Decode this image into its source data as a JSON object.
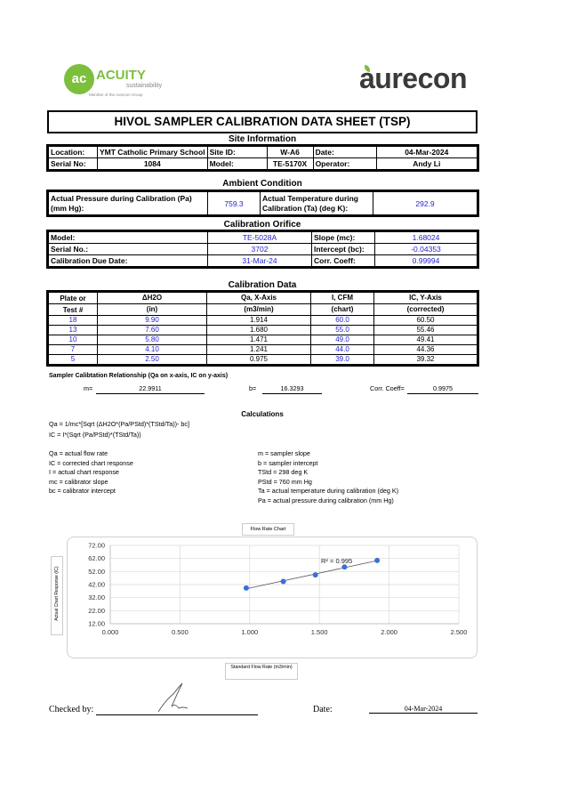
{
  "logos": {
    "left_name": "ACUITY",
    "left_sub": "sustainability",
    "left_tag": "Member of the Aurecon Group",
    "right_name": "aurecon"
  },
  "title": "HIVOL SAMPLER CALIBRATION  DATA SHEET (TSP)",
  "site": {
    "heading": "Site Information",
    "location_label": "Location:",
    "location": "YMT Catholic Primary School",
    "site_id_label": "Site ID:",
    "site_id": "W-A6",
    "date_label": "Date:",
    "date": "04-Mar-2024",
    "serial_label": "Serial No:",
    "serial": "1084",
    "model_label": "Model:",
    "model": "TE-5170X",
    "operator_label": "Operator:",
    "operator": "Andy Li"
  },
  "ambient": {
    "heading": "Ambient Condition",
    "pressure_label": "Actual Pressure during Calibration (Pa) (mm Hg):",
    "pressure": "759.3",
    "temp_label": "Actual Temperature during Calibration (Ta) (deg K):",
    "temp": "292.9"
  },
  "orifice": {
    "heading": "Calibration Orifice",
    "model_label": "Model:",
    "model": "TE-5028A",
    "slope_label": "Slope (mc):",
    "slope": "1.68024",
    "serial_label": "Serial No.:",
    "serial": "3702",
    "intercept_label": "Intercept (bc):",
    "intercept": "-0.04353",
    "due_label": "Calibration Due Date:",
    "due": "31-Mar-24",
    "corr_label": "Corr. Coeff:",
    "corr": "0.99994"
  },
  "cal_data": {
    "heading": "Calibration Data",
    "headers": [
      [
        "Plate or",
        "Test #"
      ],
      [
        "ΔH2O",
        "(in)"
      ],
      [
        "Qa, X-Axis",
        "(m3/min)"
      ],
      [
        "I, CFM",
        "(chart)"
      ],
      [
        "IC, Y-Axis",
        "(corrected)"
      ]
    ],
    "rows": [
      [
        "18",
        "9.90",
        "1.914",
        "60.0",
        "60.50"
      ],
      [
        "13",
        "7.60",
        "1.680",
        "55.0",
        "55.46"
      ],
      [
        "10",
        "5.80",
        "1.471",
        "49.0",
        "49.41"
      ],
      [
        "7",
        "4.10",
        "1.241",
        "44.0",
        "44.36"
      ],
      [
        "5",
        "2.50",
        "0.975",
        "39.0",
        "39.32"
      ]
    ]
  },
  "relationship": {
    "title": "Sampler Calibtation Relationship (Qa on x-axis, IC on y-axis)",
    "m_label": "m=",
    "m": "22.9911",
    "b_label": "b=",
    "b": "16.3293",
    "corr_label": "Corr. Coeff=",
    "corr": "0.9975"
  },
  "calculations": {
    "heading": "Calculations",
    "formula1": "Qa = 1/mc*[Sqrt (ΔH2O*(Pa/PStd)*(TStd/Ta))- bc]",
    "formula2": "IC = I*(Sqrt (Pa/PStd)*(TStd/Ta))",
    "left_defs": [
      "Qa = actual flow rate",
      "IC = corrected chart response",
      "I = actual chart response",
      "mc  = calibrator slope",
      "bc  = calibrator intercept"
    ],
    "right_defs": [
      "m = sampler slope",
      "b  = sampler intercept",
      "TStd = 298 deg K",
      "PStd = 760 mm Hg",
      "Ta = actual temperature during calibration (deg K)",
      "Pa = actual pressure during calibration (mm Hg)"
    ]
  },
  "chart_data": {
    "type": "scatter",
    "title": "Flow Rate Chart",
    "xlabel": "Standard Flow Rate (m3/min)",
    "ylabel": "Actual Chart Response (IC)",
    "xlim": [
      0,
      2.5
    ],
    "ylim": [
      12,
      72
    ],
    "xticks": [
      "0.000",
      "0.500",
      "1.000",
      "1.500",
      "2.000",
      "2.500"
    ],
    "yticks": [
      "72.00",
      "62.00",
      "52.00",
      "42.00",
      "32.00",
      "22.00",
      "12.00"
    ],
    "x": [
      1.914,
      1.68,
      1.471,
      1.241,
      0.975
    ],
    "y": [
      60.5,
      55.46,
      49.41,
      44.36,
      39.32
    ],
    "trendline": {
      "type": "linear",
      "label": "R² = 0.995"
    },
    "grid": true,
    "point_color": "#3a6fd8"
  },
  "footer": {
    "checked_label": "Checked by:",
    "date_label": "Date:",
    "date": "04-Mar-2024"
  }
}
